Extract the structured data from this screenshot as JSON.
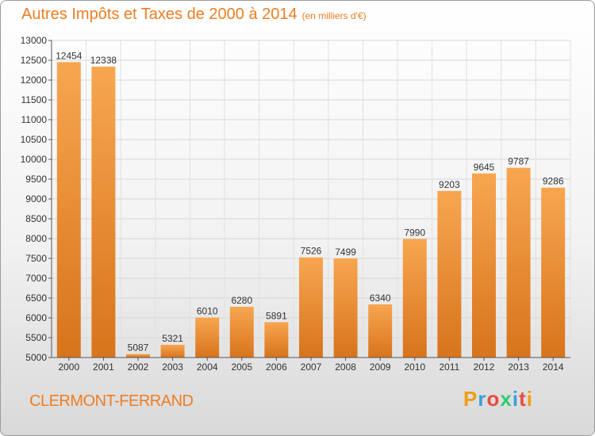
{
  "header": {
    "title": "Autres Impôts et Taxes de 2000 à 2014",
    "subtitle": "(en milliers d'€)"
  },
  "footer": {
    "city": "CLERMONT-FERRAND",
    "logo_letters": [
      "P",
      "r",
      "o",
      "x",
      "i",
      "t",
      "i"
    ],
    "logo_colors": [
      "#f39c12",
      "#3aa0d8",
      "#e74c3c",
      "#2ecc71",
      "#3aa0d8",
      "#e74c3c",
      "#f39c12"
    ]
  },
  "chart_data": {
    "type": "bar",
    "title": "Autres Impôts et Taxes de 2000 à 2014",
    "subtitle": "(en milliers d'€)",
    "categories": [
      "2000",
      "2001",
      "2002",
      "2003",
      "2004",
      "2005",
      "2006",
      "2007",
      "2008",
      "2009",
      "2010",
      "2011",
      "2012",
      "2013",
      "2014"
    ],
    "values": [
      12454,
      12338,
      5087,
      5321,
      6010,
      6280,
      5891,
      7526,
      7499,
      6340,
      7990,
      9203,
      9645,
      9787,
      9286
    ],
    "ylim": [
      5000,
      13000
    ],
    "yticks": [
      5000,
      5500,
      6000,
      6500,
      7000,
      7500,
      8000,
      8500,
      9000,
      9500,
      10000,
      10500,
      11000,
      11500,
      12000,
      12500,
      13000
    ],
    "grid": true,
    "bar_color_top": "#f7a650",
    "bar_color_bottom": "#d7741c"
  }
}
